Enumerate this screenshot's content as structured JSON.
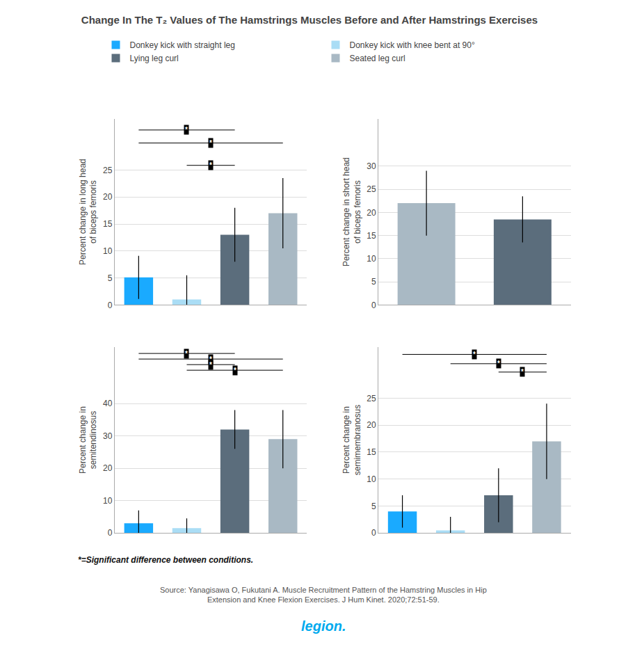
{
  "title": "Change In The T₂ Values of The Hamstrings Muscles Before and After Hamstrings Exercises",
  "legend": "top",
  "annotations": [
    {
      "text": "*=Significant difference between conditions."
    },
    {
      "text": "Source: Yanagisawa O, Fukutani A. Muscle Recruitment Pattern of the Hamstring Muscles in Hip\nExtension and Knee Flexion Exercises. J Hum Kinet. 2020;72:51-59."
    },
    {
      "text": "legion."
    }
  ],
  "chart_data": [
    {
      "type": "bar",
      "ylabel": "Percent change in long head\nof biceps femoris",
      "categories": [
        "Donkey kick with straight leg",
        "Donkey kick with knee bent at 90°",
        "Lying leg curl",
        "Seated leg curl"
      ],
      "values": [
        5.1,
        1.0,
        13.0,
        17.0
      ],
      "errors": [
        4.0,
        4.5,
        5.0,
        6.5
      ],
      "colors": [
        "#1aaaff",
        "#aaddf5",
        "#5b6d7c",
        "#a9b9c4"
      ],
      "ylim": [
        0,
        34.5
      ],
      "yticks": [
        0,
        5,
        10,
        15,
        20,
        25
      ],
      "grid": true,
      "tick_labels": "y",
      "brackets": [
        {
          "from": "Donkey kick with straight leg",
          "to": "Lying leg curl",
          "y": 32.43,
          "label": "*"
        },
        {
          "from": "Donkey kick with straight leg",
          "to": "Seated leg curl",
          "y": 30.015,
          "label": "*"
        },
        {
          "from": "Donkey kick with knee bent at 90°",
          "to": "Lying leg curl",
          "y": 25.875,
          "label": "*"
        }
      ]
    },
    {
      "type": "bar",
      "ylabel": "Percent change in short head\nof biceps femoris",
      "categories": [
        "Seated leg curl",
        "Lying leg curl"
      ],
      "values": [
        22.0,
        18.5
      ],
      "errors": [
        7.0,
        5.0
      ],
      "colors": [
        "#a9b9c4",
        "#5b6d7c"
      ],
      "ylim": [
        0,
        40.25
      ],
      "yticks": [
        0,
        5,
        10,
        15,
        20,
        25,
        30
      ],
      "grid": true,
      "tick_labels": "y",
      "brackets": []
    },
    {
      "type": "bar",
      "ylabel": "Percent change in\nsemitendinosus",
      "categories": [
        "Donkey kick with straight leg",
        "Donkey kick with knee bent at 90°",
        "Lying leg curl",
        "Seated leg curl"
      ],
      "values": [
        3.0,
        1.5,
        32.0,
        29.0
      ],
      "errors": [
        4.0,
        3.0,
        6.0,
        9.0
      ],
      "colors": [
        "#1aaaff",
        "#aaddf5",
        "#5b6d7c",
        "#a9b9c4"
      ],
      "ylim": [
        0,
        57.5
      ],
      "yticks": [
        0,
        10,
        20,
        30,
        40
      ],
      "grid": true,
      "tick_labels": "y",
      "brackets": [
        {
          "from": "Donkey kick with straight leg",
          "to": "Lying leg curl",
          "y": 55.4875,
          "label": "*"
        },
        {
          "from": "Donkey kick with straight leg",
          "to": "Seated leg curl",
          "y": 53.7625,
          "label": "*"
        },
        {
          "from": "Donkey kick with knee bent at 90°",
          "to": "Lying leg curl",
          "y": 52.0375,
          "label": "*"
        },
        {
          "from": "Donkey kick with knee bent at 90°",
          "to": "Seated leg curl",
          "y": 50.3125,
          "label": "*"
        }
      ]
    },
    {
      "type": "bar",
      "ylabel": "Percent change in\nsemimembranosus",
      "categories": [
        "Donkey kick with straight leg",
        "Donkey kick with knee bent at 90°",
        "Lying leg curl",
        "Seated leg curl"
      ],
      "values": [
        4.0,
        0.5,
        7.0,
        17.0
      ],
      "errors": [
        3.0,
        2.5,
        5.0,
        7.0
      ],
      "colors": [
        "#1aaaff",
        "#aaddf5",
        "#5b6d7c",
        "#a9b9c4"
      ],
      "ylim": [
        0,
        34.5
      ],
      "yticks": [
        0,
        5,
        10,
        15,
        20,
        25
      ],
      "grid": true,
      "tick_labels": "y",
      "brackets": [
        {
          "from": "Donkey kick with straight leg",
          "to": "Seated leg curl",
          "y": 33.12,
          "label": "*"
        },
        {
          "from": "Donkey kick with knee bent at 90°",
          "to": "Seated leg curl",
          "y": 31.395,
          "label": "*"
        },
        {
          "from": "Lying leg curl",
          "to": "Seated leg curl",
          "y": 29.8425,
          "label": "*"
        }
      ]
    }
  ]
}
